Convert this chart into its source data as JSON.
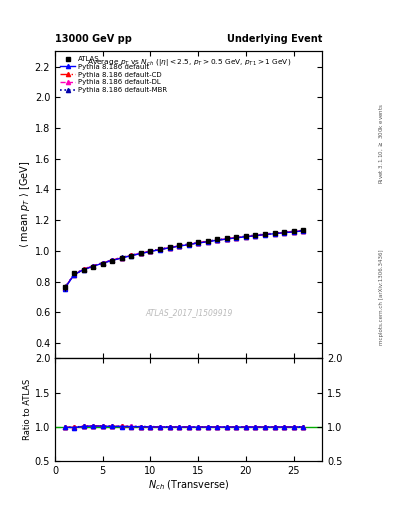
{
  "title_left": "13000 GeV pp",
  "title_right": "Underlying Event",
  "plot_title": "Average $p_T$ vs $N_{ch}$ ($|\\eta| < 2.5$, $p_T > 0.5$ GeV, $p_{T1} > 1$ GeV)",
  "xlabel": "$N_{ch}$ (Transverse)",
  "ylabel_main": "$\\langle$ mean $p_T$ $\\rangle$ [GeV]",
  "ylabel_ratio": "Ratio to ATLAS",
  "watermark": "ATLAS_2017_I1509919",
  "right_label_top": "Rivet 3.1.10, $\\geq$ 300k events",
  "right_label_bottom": "mcplots.cern.ch [arXiv:1306.3436]",
  "ylim_main": [
    0.3,
    2.3
  ],
  "ylim_ratio": [
    0.5,
    2.0
  ],
  "xlim": [
    0,
    28
  ],
  "yticks_main": [
    0.4,
    0.6,
    0.8,
    1.0,
    1.2,
    1.4,
    1.6,
    1.8,
    2.0,
    2.2
  ],
  "yticks_ratio": [
    0.5,
    1.0,
    1.5,
    2.0
  ],
  "xticks": [
    0,
    5,
    10,
    15,
    20,
    25
  ],
  "nch": [
    1,
    2,
    3,
    4,
    5,
    6,
    7,
    8,
    9,
    10,
    11,
    12,
    13,
    14,
    15,
    16,
    17,
    18,
    19,
    20,
    21,
    22,
    23,
    24,
    25,
    26
  ],
  "atlas_data": [
    0.762,
    0.856,
    0.875,
    0.892,
    0.913,
    0.934,
    0.952,
    0.968,
    0.984,
    0.999,
    1.013,
    1.025,
    1.036,
    1.047,
    1.057,
    1.066,
    1.075,
    1.083,
    1.091,
    1.098,
    1.105,
    1.112,
    1.118,
    1.124,
    1.13,
    1.136
  ],
  "atlas_err": [
    0.02,
    0.015,
    0.012,
    0.01,
    0.009,
    0.008,
    0.007,
    0.007,
    0.006,
    0.006,
    0.006,
    0.005,
    0.005,
    0.005,
    0.005,
    0.005,
    0.005,
    0.005,
    0.005,
    0.005,
    0.005,
    0.005,
    0.005,
    0.005,
    0.005,
    0.005
  ],
  "pythia_default": [
    0.755,
    0.845,
    0.878,
    0.9,
    0.92,
    0.938,
    0.954,
    0.969,
    0.983,
    0.996,
    1.008,
    1.02,
    1.031,
    1.041,
    1.051,
    1.06,
    1.069,
    1.077,
    1.085,
    1.092,
    1.099,
    1.106,
    1.112,
    1.118,
    1.124,
    1.13
  ],
  "pythia_cd": [
    0.756,
    0.846,
    0.879,
    0.901,
    0.921,
    0.939,
    0.955,
    0.97,
    0.984,
    0.997,
    1.009,
    1.021,
    1.032,
    1.042,
    1.052,
    1.061,
    1.07,
    1.078,
    1.086,
    1.093,
    1.1,
    1.107,
    1.113,
    1.119,
    1.125,
    1.131
  ],
  "pythia_dl": [
    0.757,
    0.847,
    0.88,
    0.902,
    0.922,
    0.94,
    0.956,
    0.971,
    0.985,
    0.998,
    1.01,
    1.022,
    1.033,
    1.043,
    1.053,
    1.062,
    1.071,
    1.079,
    1.087,
    1.094,
    1.101,
    1.108,
    1.114,
    1.12,
    1.126,
    1.132
  ],
  "pythia_mbr": [
    0.758,
    0.848,
    0.881,
    0.903,
    0.923,
    0.941,
    0.957,
    0.972,
    0.986,
    0.999,
    1.011,
    1.023,
    1.034,
    1.044,
    1.054,
    1.063,
    1.072,
    1.08,
    1.088,
    1.095,
    1.102,
    1.109,
    1.115,
    1.121,
    1.127,
    1.133
  ],
  "color_default": "#0000ff",
  "color_cd": "#ff0000",
  "color_dl": "#ff00bb",
  "color_mbr": "#0000aa",
  "color_atlas": "#000000",
  "color_ratio_line": "#00aa00",
  "legend_labels": [
    "ATLAS",
    "Pythia 8.186 default",
    "Pythia 8.186 default-CD",
    "Pythia 8.186 default-DL",
    "Pythia 8.186 default-MBR"
  ]
}
